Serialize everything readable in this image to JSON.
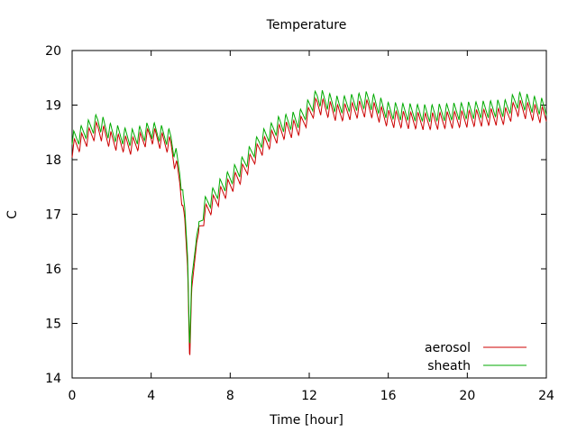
{
  "chart_data": {
    "type": "line",
    "title": "Temperature",
    "xlabel": "Time [hour]",
    "ylabel": "C",
    "xlim": [
      0,
      24
    ],
    "ylim": [
      14,
      20
    ],
    "xticks": [
      0,
      4,
      8,
      12,
      16,
      20,
      24
    ],
    "yticks": [
      14,
      15,
      16,
      17,
      18,
      19,
      20
    ],
    "grid": false,
    "legend_position": "bottom-right",
    "series": [
      {
        "name": "aerosol",
        "color": "#cc0000",
        "keypoints": [
          [
            0,
            18.2
          ],
          [
            1.3,
            18.55
          ],
          [
            2,
            18.35
          ],
          [
            3,
            18.25
          ],
          [
            4,
            18.45
          ],
          [
            5,
            18.25
          ],
          [
            5.45,
            17.6
          ],
          [
            5.7,
            16.9
          ],
          [
            5.85,
            16.0
          ],
          [
            5.95,
            14.3
          ],
          [
            6.05,
            15.6
          ],
          [
            6.3,
            16.5
          ],
          [
            6.7,
            17.0
          ],
          [
            7.5,
            17.35
          ],
          [
            8.5,
            17.7
          ],
          [
            9.5,
            18.2
          ],
          [
            10.5,
            18.5
          ],
          [
            11.5,
            18.6
          ],
          [
            12.4,
            19.0
          ],
          [
            13.5,
            18.85
          ],
          [
            15,
            18.95
          ],
          [
            16,
            18.75
          ],
          [
            18,
            18.7
          ],
          [
            20,
            18.75
          ],
          [
            22,
            18.8
          ],
          [
            22.5,
            18.95
          ],
          [
            24,
            18.8
          ]
        ]
      },
      {
        "name": "sheath",
        "color": "#00aa00",
        "keypoints": [
          [
            0,
            18.35
          ],
          [
            1.3,
            18.7
          ],
          [
            2,
            18.5
          ],
          [
            3,
            18.4
          ],
          [
            4,
            18.55
          ],
          [
            5,
            18.4
          ],
          [
            5.45,
            17.8
          ],
          [
            5.7,
            17.1
          ],
          [
            5.85,
            16.2
          ],
          [
            5.95,
            14.5
          ],
          [
            6.05,
            15.8
          ],
          [
            6.3,
            16.6
          ],
          [
            6.7,
            17.15
          ],
          [
            7.5,
            17.5
          ],
          [
            8.5,
            17.85
          ],
          [
            9.5,
            18.35
          ],
          [
            10.5,
            18.65
          ],
          [
            11.5,
            18.75
          ],
          [
            12.4,
            19.15
          ],
          [
            13.5,
            19.0
          ],
          [
            15,
            19.1
          ],
          [
            16,
            18.9
          ],
          [
            18,
            18.85
          ],
          [
            20,
            18.9
          ],
          [
            22,
            18.95
          ],
          [
            22.5,
            19.1
          ],
          [
            24,
            18.95
          ]
        ]
      }
    ]
  }
}
